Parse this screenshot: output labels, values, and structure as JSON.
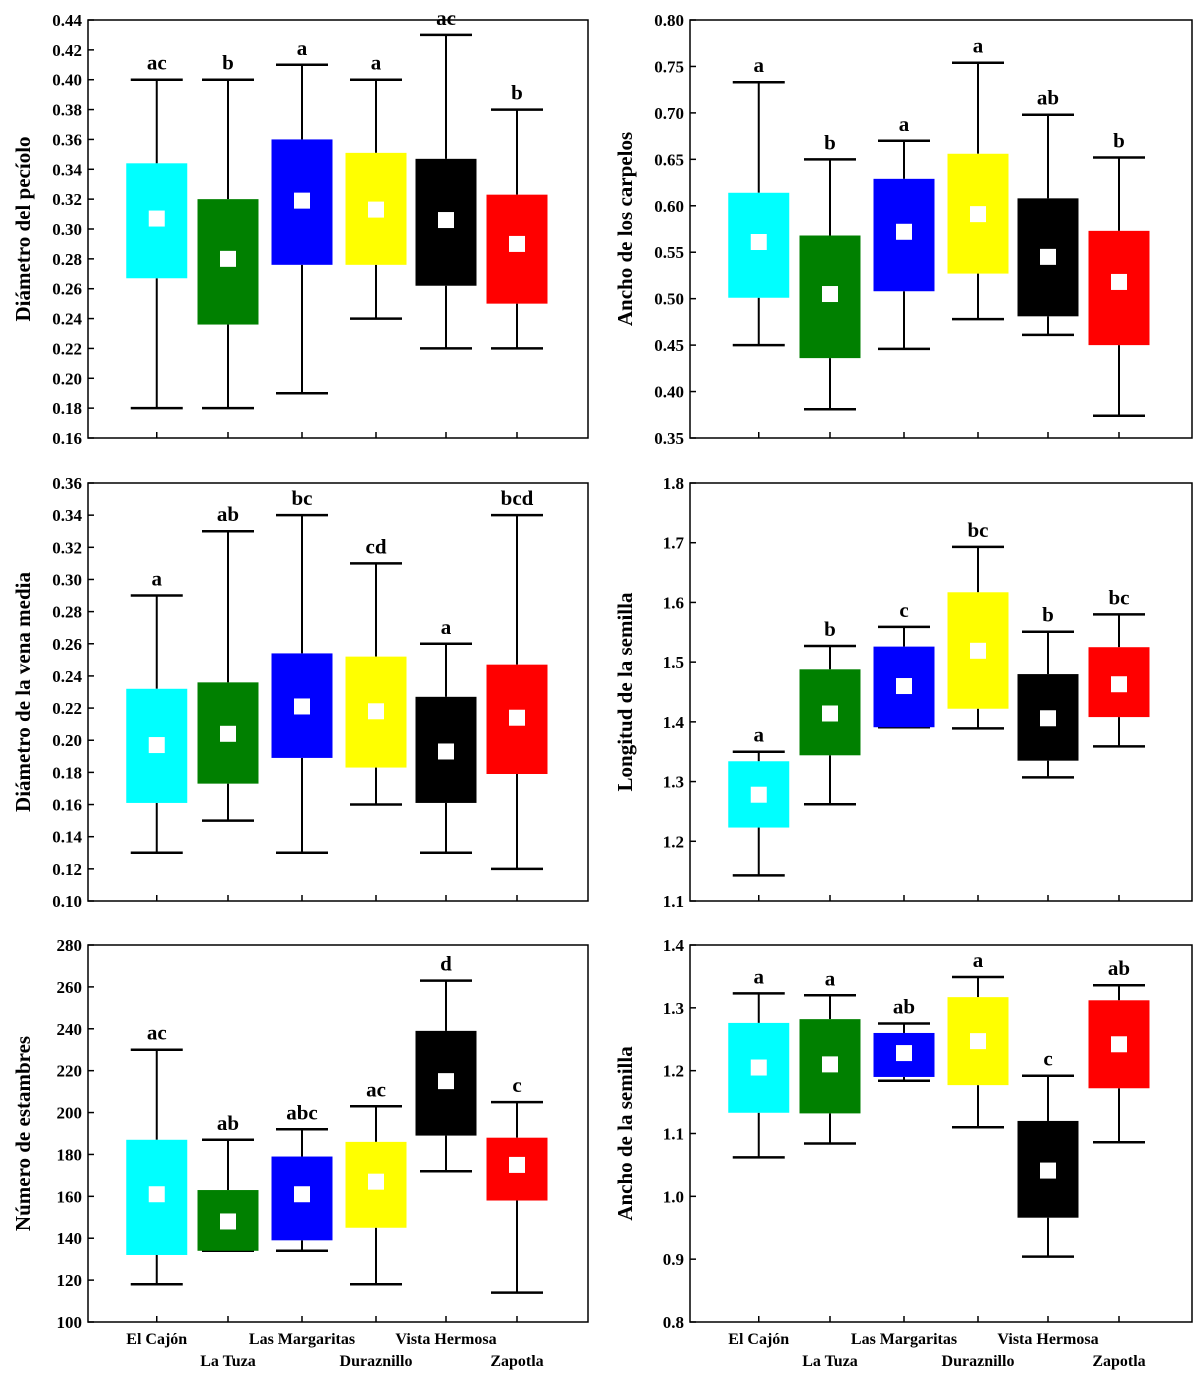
{
  "colors": [
    "#00FFFF",
    "#008000",
    "#0000FF",
    "#FFFF00",
    "#000000",
    "#FF0000"
  ],
  "chart_data": [
    {
      "type": "box",
      "ylabel": "Diámetro del pecíolo",
      "ylim": [
        0.16,
        0.44
      ],
      "ticks": [
        "0.16",
        "0.18",
        "0.20",
        "0.22",
        "0.24",
        "0.26",
        "0.28",
        "0.30",
        "0.32",
        "0.34",
        "0.36",
        "0.38",
        "0.40",
        "0.42",
        "0.44"
      ],
      "categories": [
        "El Cajón",
        "La Tuza",
        "Las Margaritas",
        "Duraznillo",
        "Vista Hermosa",
        "Zapotla"
      ],
      "series": [
        {
          "name": "El Cajón",
          "min": 0.18,
          "q1": 0.267,
          "median": 0.307,
          "q3": 0.344,
          "max": 0.4,
          "letter": "ac"
        },
        {
          "name": "La Tuza",
          "min": 0.18,
          "q1": 0.236,
          "median": 0.28,
          "q3": 0.32,
          "max": 0.4,
          "letter": "b"
        },
        {
          "name": "Las Margaritas",
          "min": 0.19,
          "q1": 0.276,
          "median": 0.319,
          "q3": 0.36,
          "max": 0.41,
          "letter": "a"
        },
        {
          "name": "Duraznillo",
          "min": 0.24,
          "q1": 0.276,
          "median": 0.313,
          "q3": 0.351,
          "max": 0.4,
          "letter": "a"
        },
        {
          "name": "Vista Hermosa",
          "min": 0.22,
          "q1": 0.262,
          "median": 0.306,
          "q3": 0.347,
          "max": 0.43,
          "letter": "ac"
        },
        {
          "name": "Zapotla",
          "min": 0.22,
          "q1": 0.25,
          "median": 0.29,
          "q3": 0.323,
          "max": 0.38,
          "letter": "b"
        }
      ]
    },
    {
      "type": "box",
      "ylabel": "Ancho de los carpelos",
      "ylim": [
        0.35,
        0.8
      ],
      "ticks": [
        "0.35",
        "0.40",
        "0.45",
        "0.50",
        "0.55",
        "0.60",
        "0.65",
        "0.70",
        "0.75",
        "0.80"
      ],
      "categories": [
        "El Cajón",
        "La Tuza",
        "Las Margaritas",
        "Duraznillo",
        "Vista Hermosa",
        "Zapotla"
      ],
      "series": [
        {
          "name": "El Cajón",
          "min": 0.45,
          "q1": 0.501,
          "median": 0.561,
          "q3": 0.614,
          "max": 0.733,
          "letter": "a"
        },
        {
          "name": "La Tuza",
          "min": 0.381,
          "q1": 0.436,
          "median": 0.505,
          "q3": 0.568,
          "max": 0.65,
          "letter": "b"
        },
        {
          "name": "Las Margaritas",
          "min": 0.446,
          "q1": 0.508,
          "median": 0.572,
          "q3": 0.629,
          "max": 0.67,
          "letter": "a"
        },
        {
          "name": "Duraznillo",
          "min": 0.478,
          "q1": 0.527,
          "median": 0.591,
          "q3": 0.656,
          "max": 0.754,
          "letter": "a"
        },
        {
          "name": "Vista Hermosa",
          "min": 0.461,
          "q1": 0.481,
          "median": 0.545,
          "q3": 0.608,
          "max": 0.698,
          "letter": "ab"
        },
        {
          "name": "Zapotla",
          "min": 0.374,
          "q1": 0.45,
          "median": 0.518,
          "q3": 0.573,
          "max": 0.652,
          "letter": "b"
        }
      ]
    },
    {
      "type": "box",
      "ylabel": "Diámetro de la vena media",
      "ylim": [
        0.1,
        0.36
      ],
      "ticks": [
        "0.10",
        "0.12",
        "0.14",
        "0.16",
        "0.18",
        "0.20",
        "0.22",
        "0.24",
        "0.26",
        "0.28",
        "0.30",
        "0.32",
        "0.34",
        "0.36"
      ],
      "categories": [
        "El Cajón",
        "La Tuza",
        "Las Margaritas",
        "Duraznillo",
        "Vista Hermosa",
        "Zapotla"
      ],
      "series": [
        {
          "name": "El Cajón",
          "min": 0.13,
          "q1": 0.161,
          "median": 0.197,
          "q3": 0.232,
          "max": 0.29,
          "letter": "a"
        },
        {
          "name": "La Tuza",
          "min": 0.15,
          "q1": 0.173,
          "median": 0.204,
          "q3": 0.236,
          "max": 0.33,
          "letter": "ab"
        },
        {
          "name": "Las Margaritas",
          "min": 0.13,
          "q1": 0.189,
          "median": 0.221,
          "q3": 0.254,
          "max": 0.34,
          "letter": "bc"
        },
        {
          "name": "Duraznillo",
          "min": 0.16,
          "q1": 0.183,
          "median": 0.218,
          "q3": 0.252,
          "max": 0.31,
          "letter": "cd"
        },
        {
          "name": "Vista Hermosa",
          "min": 0.13,
          "q1": 0.161,
          "median": 0.193,
          "q3": 0.227,
          "max": 0.26,
          "letter": "a"
        },
        {
          "name": "Zapotla",
          "min": 0.12,
          "q1": 0.179,
          "median": 0.214,
          "q3": 0.247,
          "max": 0.34,
          "letter": "bcd"
        }
      ]
    },
    {
      "type": "box",
      "ylabel": "Longitud de la semilla",
      "ylim": [
        1.1,
        1.8
      ],
      "ticks": [
        "1.1",
        "1.2",
        "1.3",
        "1.4",
        "1.5",
        "1.6",
        "1.7",
        "1.8"
      ],
      "categories": [
        "El Cajón",
        "La Tuza",
        "Las Margaritas",
        "Duraznillo",
        "Vista Hermosa",
        "Zapotla"
      ],
      "series": [
        {
          "name": "El Cajón",
          "min": 1.143,
          "q1": 1.223,
          "median": 1.278,
          "q3": 1.334,
          "max": 1.35,
          "letter": "a"
        },
        {
          "name": "La Tuza",
          "min": 1.262,
          "q1": 1.344,
          "median": 1.414,
          "q3": 1.488,
          "max": 1.527,
          "letter": "b"
        },
        {
          "name": "Las Margaritas",
          "min": 1.391,
          "q1": 1.391,
          "median": 1.46,
          "q3": 1.526,
          "max": 1.559,
          "letter": "c"
        },
        {
          "name": "Duraznillo",
          "min": 1.389,
          "q1": 1.422,
          "median": 1.519,
          "q3": 1.617,
          "max": 1.693,
          "letter": "bc"
        },
        {
          "name": "Vista Hermosa",
          "min": 1.307,
          "q1": 1.335,
          "median": 1.406,
          "q3": 1.48,
          "max": 1.551,
          "letter": "b"
        },
        {
          "name": "Zapotla",
          "min": 1.359,
          "q1": 1.408,
          "median": 1.463,
          "q3": 1.525,
          "max": 1.58,
          "letter": "bc"
        }
      ]
    },
    {
      "type": "box",
      "ylabel": "Número de estambres",
      "ylim": [
        100,
        280
      ],
      "ticks": [
        "100",
        "120",
        "140",
        "160",
        "180",
        "200",
        "220",
        "240",
        "260",
        "280"
      ],
      "categories": [
        "El Cajón",
        "La Tuza",
        "Las Margaritas",
        "Duraznillo",
        "Vista Hermosa",
        "Zapotla"
      ],
      "series": [
        {
          "name": "El Cajón",
          "min": 118,
          "q1": 132,
          "median": 161,
          "q3": 187,
          "max": 230,
          "letter": "ac"
        },
        {
          "name": "La Tuza",
          "min": 134,
          "q1": 134,
          "median": 148,
          "q3": 163,
          "max": 187,
          "letter": "ab"
        },
        {
          "name": "Las Margaritas",
          "min": 134,
          "q1": 139,
          "median": 161,
          "q3": 179,
          "max": 192,
          "letter": "abc"
        },
        {
          "name": "Duraznillo",
          "min": 118,
          "q1": 145,
          "median": 167,
          "q3": 186,
          "max": 203,
          "letter": "ac"
        },
        {
          "name": "Vista Hermosa",
          "min": 172,
          "q1": 189,
          "median": 215,
          "q3": 239,
          "max": 263,
          "letter": "d"
        },
        {
          "name": "Zapotla",
          "min": 114,
          "q1": 158,
          "median": 175,
          "q3": 188,
          "max": 205,
          "letter": "c"
        }
      ]
    },
    {
      "type": "box",
      "ylabel": "Ancho de la semilla",
      "ylim": [
        0.8,
        1.4
      ],
      "ticks": [
        "0.8",
        "0.9",
        "1.0",
        "1.1",
        "1.2",
        "1.3",
        "1.4"
      ],
      "categories": [
        "El Cajón",
        "La Tuza",
        "Las Margaritas",
        "Duraznillo",
        "Vista Hermosa",
        "Zapotla"
      ],
      "series": [
        {
          "name": "El Cajón",
          "min": 1.062,
          "q1": 1.133,
          "median": 1.205,
          "q3": 1.276,
          "max": 1.323,
          "letter": "a"
        },
        {
          "name": "La Tuza",
          "min": 1.084,
          "q1": 1.132,
          "median": 1.21,
          "q3": 1.282,
          "max": 1.32,
          "letter": "a"
        },
        {
          "name": "Las Margaritas",
          "min": 1.184,
          "q1": 1.19,
          "median": 1.228,
          "q3": 1.26,
          "max": 1.275,
          "letter": "ab"
        },
        {
          "name": "Duraznillo",
          "min": 1.11,
          "q1": 1.177,
          "median": 1.247,
          "q3": 1.317,
          "max": 1.349,
          "letter": "a"
        },
        {
          "name": "Vista Hermosa",
          "min": 0.904,
          "q1": 0.966,
          "median": 1.041,
          "q3": 1.12,
          "max": 1.192,
          "letter": "c"
        },
        {
          "name": "Zapotla",
          "min": 1.086,
          "q1": 1.172,
          "median": 1.242,
          "q3": 1.312,
          "max": 1.336,
          "letter": "ab"
        }
      ]
    }
  ]
}
